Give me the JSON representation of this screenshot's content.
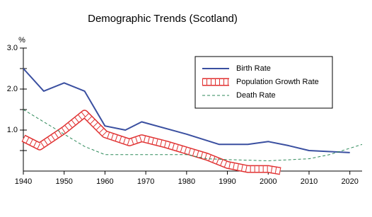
{
  "chart_data": {
    "type": "line",
    "title": "Demographic Trends (Scotland)",
    "y_label": "%",
    "xlim": [
      1940,
      2023
    ],
    "xticks": [
      1940,
      1950,
      1960,
      1970,
      1980,
      1990,
      2000,
      2010,
      2020
    ],
    "ylim": [
      0,
      3
    ],
    "yticks": [
      {
        "value": 1,
        "label": "1.0"
      },
      {
        "value": 2,
        "label": "2.0"
      },
      {
        "value": 3,
        "label": "3.0"
      }
    ],
    "yminorticks": [
      0.5,
      1.5,
      2.5
    ],
    "legend": "upper right",
    "series": [
      {
        "name": "Birth Rate",
        "color": "#3a4fa0",
        "style": "solid",
        "x": [
          1940,
          1945,
          1950,
          1955,
          1960,
          1965,
          1969,
          1980,
          1988,
          1995,
          2000,
          2005,
          2010,
          2020
        ],
        "values": [
          2.5,
          1.95,
          2.15,
          1.95,
          1.1,
          1.0,
          1.2,
          0.9,
          0.65,
          0.65,
          0.72,
          0.62,
          0.5,
          0.45
        ]
      },
      {
        "name": "Population Growth Rate",
        "color": "#e03030",
        "style": "band",
        "x": [
          1940,
          1944,
          1950,
          1955,
          1960,
          1966,
          1969,
          1975,
          1980,
          1985,
          1990,
          1995,
          2000,
          2003
        ],
        "values": [
          0.8,
          0.6,
          1.0,
          1.4,
          0.9,
          0.7,
          0.8,
          0.65,
          0.5,
          0.35,
          0.15,
          0.05,
          0.05,
          0
        ]
      },
      {
        "name": "Death Rate",
        "color": "#2e8a5a",
        "style": "dashed",
        "x": [
          1940,
          1945,
          1950,
          1955,
          1960,
          1970,
          1980,
          1985,
          1990,
          2000,
          2010,
          2015,
          2023
        ],
        "values": [
          1.5,
          1.2,
          0.9,
          0.6,
          0.4,
          0.4,
          0.4,
          0.3,
          0.28,
          0.25,
          0.3,
          0.4,
          0.65
        ]
      }
    ]
  }
}
